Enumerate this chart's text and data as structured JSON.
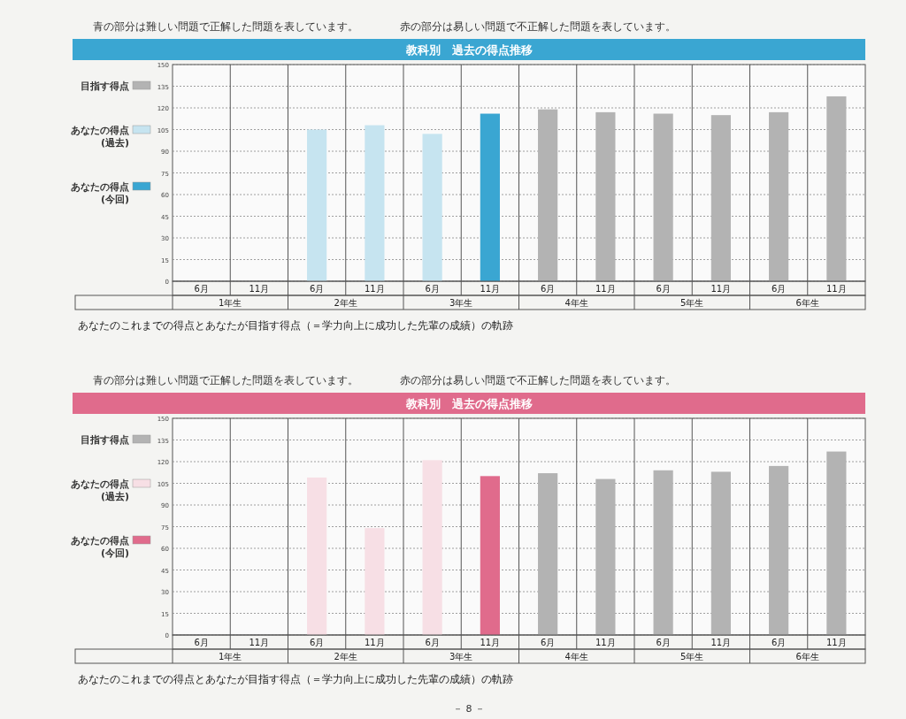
{
  "chart_data": [
    {
      "type": "bar",
      "title": "教科別　過去の得点推移",
      "categories": [
        "6月",
        "11月",
        "6月",
        "11月",
        "6月",
        "11月",
        "6月",
        "11月",
        "6月",
        "11月",
        "6月",
        "11月"
      ],
      "series": [
        {
          "name": "目指す得点",
          "color": "#b3b3b3",
          "values": [
            null,
            null,
            null,
            null,
            null,
            null,
            119,
            117,
            116,
            115,
            117,
            128
          ]
        },
        {
          "name": "あなたの得点(過去)",
          "color": "#c6e4f0",
          "values": [
            null,
            null,
            105,
            108,
            102,
            null,
            null,
            null,
            null,
            null,
            null,
            null
          ]
        },
        {
          "name": "あなたの得点(今回)",
          "color": "#3aa6d2",
          "values": [
            null,
            null,
            null,
            null,
            null,
            116,
            null,
            null,
            null,
            null,
            null,
            null
          ]
        }
      ],
      "ylim": [
        0,
        150
      ],
      "yticks": [
        0,
        15,
        30,
        45,
        60,
        75,
        90,
        105,
        120,
        135,
        150
      ],
      "grid": "y",
      "legend": "left",
      "annotations": [
        "青の部分は難しい問題で正解した問題を表しています。",
        "赤の部分は易しい問題で不正解した問題を表しています。",
        "1年生",
        "2年生",
        "3年生",
        "4年生",
        "5年生",
        "6年生",
        "あなたのこれまでの得点とあなたが目指す得点（＝学力向上に成功した先輩の成績）の軌跡"
      ]
    },
    {
      "type": "bar",
      "title": "教科別　過去の得点推移",
      "categories": [
        "6月",
        "11月",
        "6月",
        "11月",
        "6月",
        "11月",
        "6月",
        "11月",
        "6月",
        "11月",
        "6月",
        "11月"
      ],
      "series": [
        {
          "name": "目指す得点",
          "color": "#b3b3b3",
          "values": [
            null,
            null,
            null,
            null,
            null,
            null,
            112,
            108,
            114,
            113,
            117,
            127
          ]
        },
        {
          "name": "あなたの得点(過去)",
          "color": "#f7dfe5",
          "values": [
            null,
            null,
            109,
            74,
            121,
            null,
            null,
            null,
            null,
            null,
            null,
            null
          ]
        },
        {
          "name": "あなたの得点(今回)",
          "color": "#e06b8c",
          "values": [
            null,
            null,
            null,
            null,
            null,
            110,
            null,
            null,
            null,
            null,
            null,
            null
          ]
        }
      ],
      "ylim": [
        0,
        150
      ],
      "yticks": [
        0,
        15,
        30,
        45,
        60,
        75,
        90,
        105,
        120,
        135,
        150
      ],
      "grid": "y",
      "legend": "left",
      "annotations": [
        "青の部分は難しい問題で正解した問題を表しています。",
        "赤の部分は易しい問題で不正解した問題を表しています。",
        "1年生",
        "2年生",
        "3年生",
        "4年生",
        "5年生",
        "6年生",
        "あなたのこれまでの得点とあなたが目指す得点（＝学力向上に成功した先輩の成績）の軌跡",
        "－ 8 －"
      ]
    }
  ]
}
